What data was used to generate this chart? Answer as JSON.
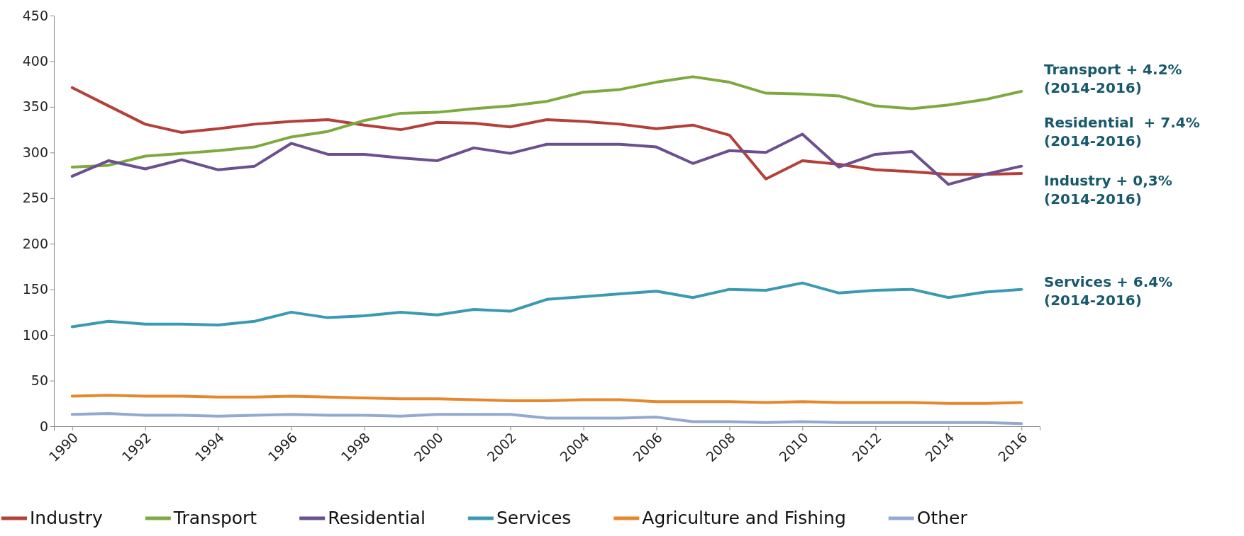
{
  "chart_data": {
    "type": "line",
    "x": [
      1990,
      1991,
      1992,
      1993,
      1994,
      1995,
      1996,
      1997,
      1998,
      1999,
      2000,
      2001,
      2002,
      2003,
      2004,
      2005,
      2006,
      2007,
      2008,
      2009,
      2010,
      2011,
      2012,
      2013,
      2014,
      2015,
      2016
    ],
    "xlim": [
      1989.5,
      2016.5
    ],
    "xticks": [
      1990,
      1992,
      1994,
      1996,
      1998,
      2000,
      2002,
      2004,
      2006,
      2008,
      2010,
      2012,
      2014,
      2016
    ],
    "ylim": [
      0,
      450
    ],
    "yticks": [
      0,
      50,
      100,
      150,
      200,
      250,
      300,
      350,
      400,
      450
    ],
    "grid": false,
    "legend": "bottom",
    "marker": "none",
    "line_style": "solid",
    "series": [
      {
        "name": "Industry",
        "color": "#b5403a",
        "values": [
          371,
          351,
          331,
          322,
          326,
          331,
          334,
          336,
          330,
          325,
          333,
          332,
          328,
          336,
          334,
          331,
          326,
          330,
          319,
          271,
          291,
          287,
          281,
          279,
          276,
          276,
          277
        ]
      },
      {
        "name": "Transport",
        "color": "#7ea93f",
        "values": [
          284,
          286,
          296,
          299,
          302,
          306,
          317,
          323,
          335,
          343,
          344,
          348,
          351,
          356,
          366,
          369,
          377,
          383,
          377,
          365,
          364,
          362,
          351,
          348,
          352,
          358,
          367
        ]
      },
      {
        "name": "Residential",
        "color": "#6b4f8f",
        "values": [
          274,
          291,
          282,
          292,
          281,
          285,
          310,
          298,
          298,
          294,
          291,
          305,
          299,
          309,
          309,
          309,
          306,
          288,
          302,
          300,
          320,
          284,
          298,
          301,
          265,
          276,
          285
        ]
      },
      {
        "name": "Services",
        "color": "#3a9ab1",
        "values": [
          109,
          115,
          112,
          112,
          111,
          115,
          125,
          119,
          121,
          125,
          122,
          128,
          126,
          139,
          142,
          145,
          148,
          141,
          150,
          149,
          157,
          146,
          149,
          150,
          141,
          147,
          150
        ]
      },
      {
        "name": "Agriculture and Fishing",
        "color": "#e5872d",
        "values": [
          33,
          34,
          33,
          33,
          32,
          32,
          33,
          32,
          31,
          30,
          30,
          29,
          28,
          28,
          29,
          29,
          27,
          27,
          27,
          26,
          27,
          26,
          26,
          26,
          25,
          25,
          26
        ]
      },
      {
        "name": "Other",
        "color": "#93a9d1",
        "values": [
          13,
          14,
          12,
          12,
          11,
          12,
          13,
          12,
          12,
          11,
          13,
          13,
          13,
          9,
          9,
          9,
          10,
          5,
          5,
          4,
          5,
          4,
          4,
          4,
          4,
          4,
          3
        ]
      }
    ],
    "annotations": [
      "Transport + 4.2%\n(2014-2016)",
      "Residential  + 7.4%\n(2014-2016)",
      "Industry + 0,3%\n(2014-2016)",
      "Services + 6.4%\n(2014-2016)"
    ]
  }
}
